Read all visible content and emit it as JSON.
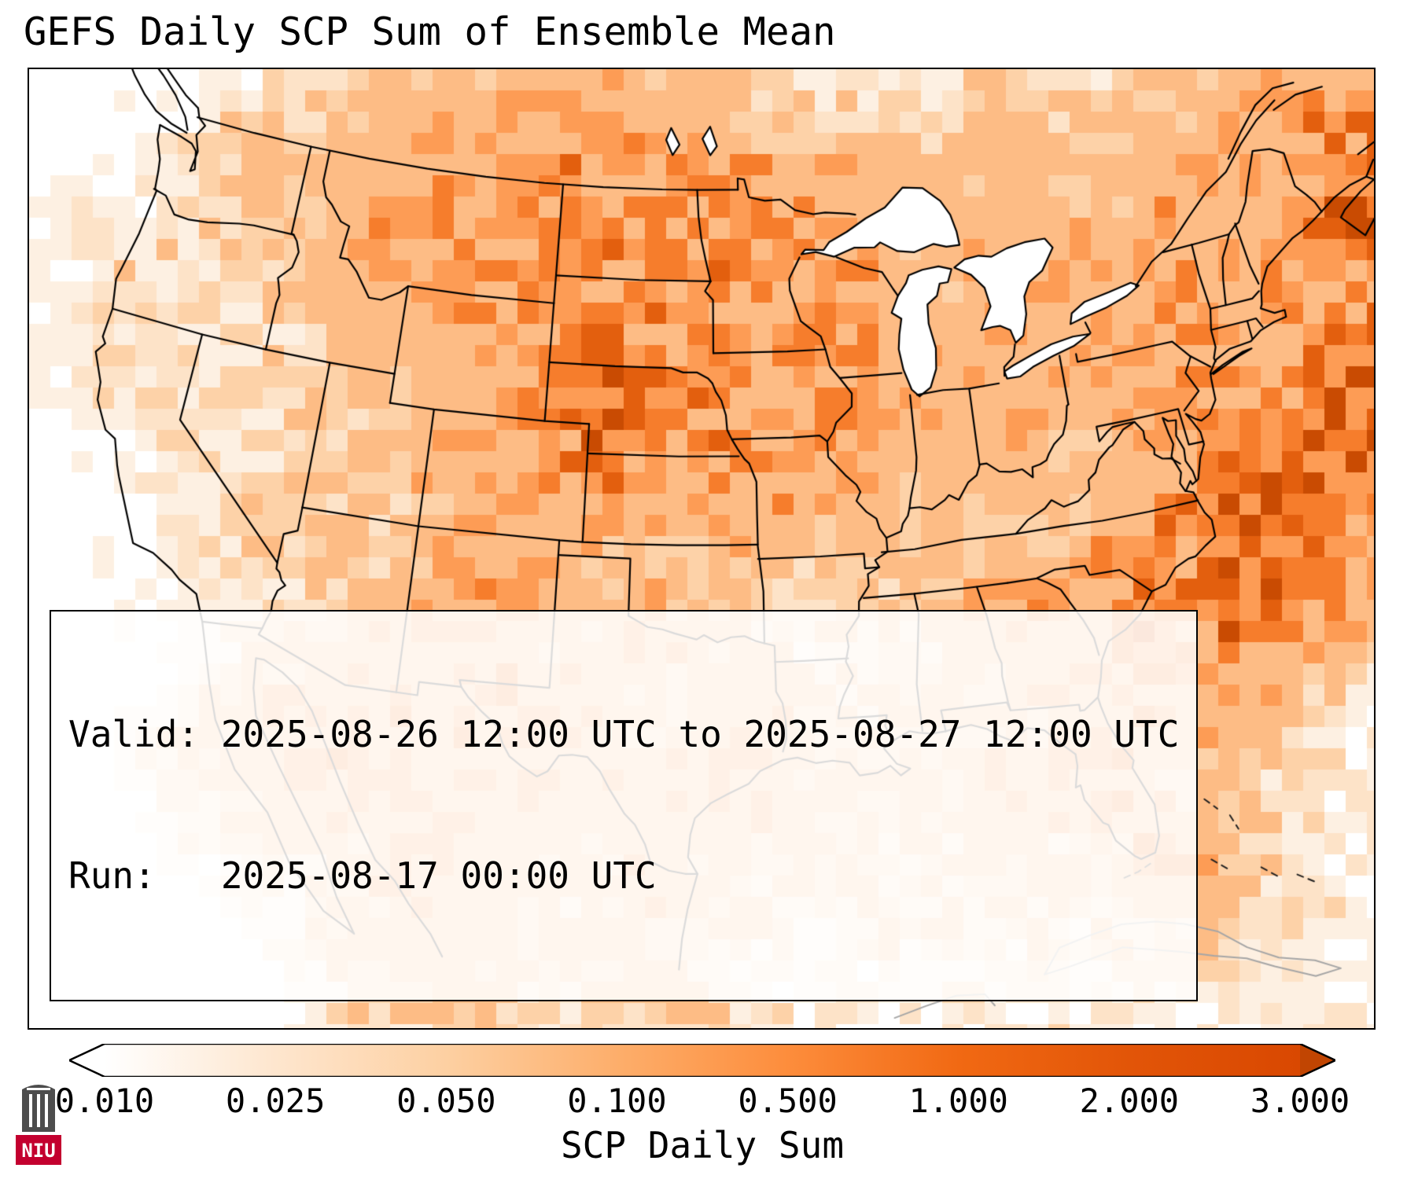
{
  "title": "GEFS Daily SCP Sum of Ensemble Mean",
  "info_box": {
    "line1": "Valid: 2025-08-26 12:00 UTC to 2025-08-27 12:00 UTC",
    "line2": "Run:   2025-08-17 00:00 UTC"
  },
  "colorbar": {
    "label": "SCP Daily Sum",
    "ticks": [
      "0.010",
      "0.025",
      "0.050",
      "0.100",
      "0.500",
      "1.000",
      "2.000",
      "3.000"
    ],
    "gradient": [
      "#ffffff",
      "#fee6ce",
      "#fdd0a2",
      "#fdae6b",
      "#fd8d3c",
      "#f16913",
      "#e25508",
      "#d94801"
    ],
    "under": "#ffffff",
    "over": "#c14502"
  },
  "logo": {
    "text": "NIU",
    "bg": "#c3002f",
    "tower": "#4d4d4d"
  },
  "heatmap": {
    "bins": [
      0.01,
      0.025,
      0.05,
      0.1,
      0.5,
      1,
      2,
      3
    ],
    "colors": [
      "#fdf0e2",
      "#fde3c8",
      "#fdd2a8",
      "#fdbc85",
      "#fd9c55",
      "#f67d2c",
      "#e35f0e"
    ],
    "over": "#c94b02",
    "blobs": [
      [
        -100.5,
        47,
        3.5,
        0.3
      ],
      [
        -97.5,
        45.8,
        2.8,
        0.28
      ],
      [
        -102,
        44.5,
        3,
        0.25
      ],
      [
        -104.5,
        47.5,
        3,
        0.22
      ],
      [
        -109,
        47.5,
        3,
        0.2
      ],
      [
        -113,
        47,
        2.5,
        0.15
      ],
      [
        -111,
        45,
        2.5,
        0.14
      ],
      [
        -105,
        50.5,
        4,
        0.25
      ],
      [
        -98.5,
        50,
        3,
        0.2
      ],
      [
        -95,
        47.5,
        2.5,
        0.18
      ],
      [
        -93,
        45.5,
        2.5,
        0.2
      ],
      [
        -91,
        44.5,
        2.5,
        0.18
      ],
      [
        -100.3,
        41.6,
        1.1,
        0.9
      ],
      [
        -101,
        42.5,
        2.5,
        0.35
      ],
      [
        -98.5,
        41.3,
        2.2,
        0.3
      ],
      [
        -96.5,
        42,
        2.2,
        0.28
      ],
      [
        -98.5,
        38.5,
        2.5,
        0.22
      ],
      [
        -100,
        39.5,
        2,
        0.25
      ],
      [
        -105.8,
        41,
        2,
        0.25
      ],
      [
        -104.8,
        38.3,
        2,
        0.28
      ],
      [
        -106.5,
        37.5,
        2,
        0.25
      ],
      [
        -103.5,
        36,
        2,
        0.22
      ],
      [
        -107.5,
        43,
        2.5,
        0.18
      ],
      [
        -112.5,
        39,
        2.5,
        0.12
      ],
      [
        -108.5,
        34.5,
        2.5,
        0.22
      ],
      [
        -110.5,
        32.5,
        2,
        0.18
      ],
      [
        -107,
        32.5,
        2,
        0.18
      ],
      [
        -104.5,
        31,
        2.5,
        0.12
      ],
      [
        -101.5,
        33.5,
        2.5,
        0.18
      ],
      [
        -98.5,
        31.5,
        2.5,
        0.15
      ],
      [
        -97,
        28.5,
        2,
        0.2
      ],
      [
        -99.5,
        27,
        2,
        0.18
      ],
      [
        -94.5,
        28.8,
        2.5,
        0.22
      ],
      [
        -93.5,
        41.8,
        2.2,
        0.25
      ],
      [
        -92.5,
        38.8,
        2.2,
        0.22
      ],
      [
        -89.5,
        40.5,
        2.2,
        0.18
      ],
      [
        -89.5,
        44,
        2,
        0.2
      ],
      [
        -85.3,
        43,
        2.2,
        0.18
      ],
      [
        -85.5,
        40.5,
        2,
        0.15
      ],
      [
        -82.5,
        40.5,
        2,
        0.18
      ],
      [
        -86.5,
        35.8,
        2.2,
        0.18
      ],
      [
        -83.5,
        33,
        2,
        0.15
      ],
      [
        -81,
        34.2,
        1.8,
        0.3
      ],
      [
        -78.5,
        35.3,
        2,
        0.3
      ],
      [
        -77.5,
        32.5,
        2.5,
        0.55
      ],
      [
        -74.5,
        34.5,
        2.6,
        0.85
      ],
      [
        -71.5,
        36.5,
        2.8,
        1
      ],
      [
        -68,
        38.5,
        3,
        1
      ],
      [
        -64.5,
        40.5,
        3,
        0.95
      ],
      [
        -61.5,
        42.5,
        3,
        0.85
      ],
      [
        -79.5,
        30.5,
        2.3,
        0.4
      ],
      [
        -72,
        40,
        2.2,
        0.45
      ],
      [
        -81.5,
        28,
        2,
        0.18
      ],
      [
        -80.3,
        26,
        1.8,
        0.2
      ],
      [
        -79.5,
        24.5,
        2,
        0.25
      ],
      [
        -89,
        27.5,
        3,
        0.15
      ],
      [
        -85.5,
        28.5,
        2.5,
        0.18
      ],
      [
        -108.3,
        27.5,
        2.5,
        0.35
      ],
      [
        -106,
        24,
        2.5,
        0.3
      ],
      [
        -111.5,
        30,
        2,
        0.2
      ],
      [
        -113.8,
        28.5,
        2,
        0.25
      ],
      [
        -103,
        28,
        2.5,
        0.15
      ],
      [
        -98.5,
        23.5,
        2,
        0.25
      ],
      [
        -76,
        42.5,
        2.5,
        0.12
      ],
      [
        -78.5,
        44.5,
        2.5,
        0.15
      ],
      [
        -66,
        47,
        2.5,
        0.3
      ],
      [
        -71,
        47.5,
        2.5,
        0.2
      ],
      [
        -63,
        45.5,
        2.5,
        0.5
      ],
      [
        -66.5,
        43,
        2.5,
        0.5
      ],
      [
        -80,
        47.5,
        3,
        0.15
      ],
      [
        -85,
        48.5,
        3,
        0.12
      ],
      [
        -75,
        45.5,
        2.5,
        0.12
      ],
      [
        -122,
        40,
        2,
        0.04
      ],
      [
        -118,
        35.5,
        2,
        0.04
      ],
      [
        -121,
        47,
        2,
        0.06
      ],
      [
        -124,
        43,
        2,
        0.05
      ]
    ]
  }
}
